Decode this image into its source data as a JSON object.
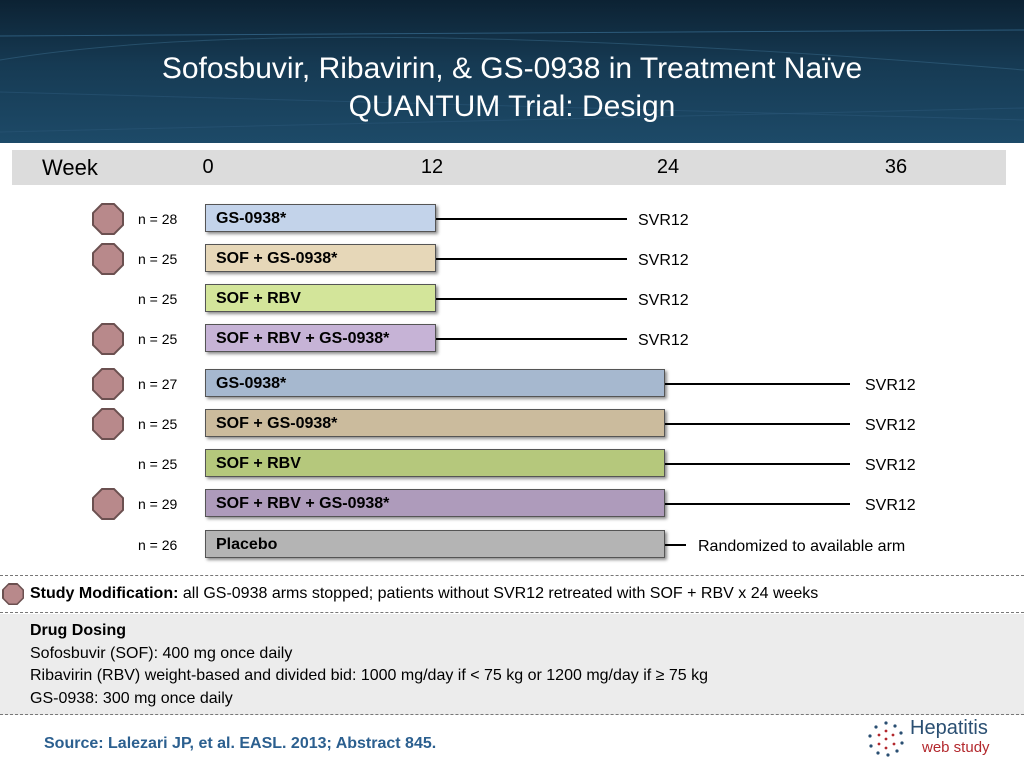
{
  "title": {
    "line1": "Sofosbuvir, Ribavirin, & GS-0938  in Treatment Naïve",
    "line2": "QUANTUM Trial: Design"
  },
  "weekbar": {
    "label": "Week",
    "ticks": [
      "0",
      "12",
      "24",
      "36"
    ]
  },
  "arms": [
    {
      "n": "n = 28",
      "label": "GS-0938*",
      "svr": "SVR12",
      "stopped": true,
      "color": "#c3d3ea"
    },
    {
      "n": "n = 25",
      "label": "SOF + GS-0938*",
      "svr": "SVR12",
      "stopped": true,
      "color": "#e6d7b8"
    },
    {
      "n": "n = 25",
      "label": "SOF + RBV",
      "svr": "SVR12",
      "stopped": false,
      "color": "#d3e59a"
    },
    {
      "n": "n = 25",
      "label": "SOF + RBV + GS-0938*",
      "svr": "SVR12",
      "stopped": true,
      "color": "#c6b3d6"
    },
    {
      "n": "n = 27",
      "label": "GS-0938*",
      "svr": "SVR12",
      "stopped": true,
      "color": "#a6b8cf"
    },
    {
      "n": "n = 25",
      "label": "SOF + GS-0938*",
      "svr": "SVR12",
      "stopped": true,
      "color": "#cbbb9d"
    },
    {
      "n": "n = 25",
      "label": "SOF + RBV",
      "svr": "SVR12",
      "stopped": false,
      "color": "#b5c87c"
    },
    {
      "n": "n = 29",
      "label": "SOF + RBV + GS-0938*",
      "svr": "SVR12",
      "stopped": true,
      "color": "#ae9bbb"
    },
    {
      "n": "n = 26",
      "label": "Placebo",
      "svr": "Randomized to available arm",
      "stopped": false,
      "color": "#b4b4b4"
    }
  ],
  "modification": {
    "bold": "Study Modification:",
    "text": " all GS-0938 arms stopped; patients without SVR12 retreated with SOF + RBV x 24 weeks"
  },
  "dosing": {
    "heading": "Drug Dosing",
    "lines": [
      "Sofosbuvir (SOF): 400 mg once daily",
      "Ribavirin (RBV) weight-based and divided bid: 1000 mg/day if < 75 kg or 1200 mg/day if ≥ 75 kg",
      "GS-0938: 300 mg once daily"
    ]
  },
  "source": "Source: Lalezari JP, et al.  EASL. 2013; Abstract 845.",
  "logo": {
    "line1": "Hepatitis",
    "line2": "web study",
    "icon": "dotted-circle-logo-icon"
  }
}
